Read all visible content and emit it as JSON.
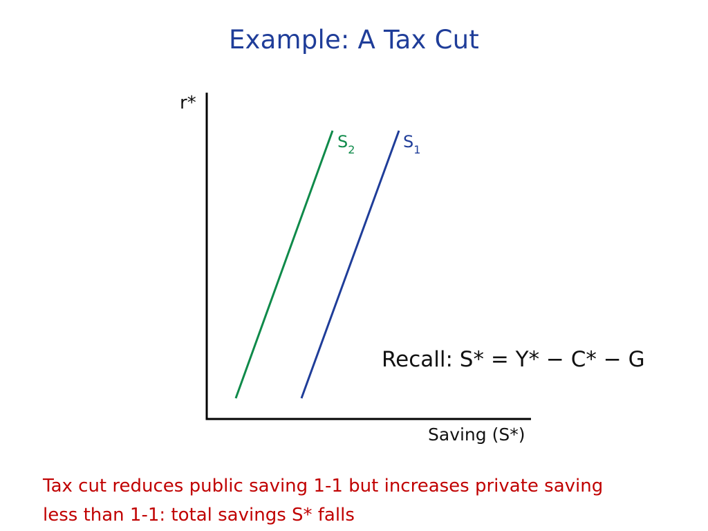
{
  "title": "Example: A Tax Cut",
  "diagram": {
    "y_axis_label": "r*",
    "x_axis_label": "Saving (S*)",
    "curves": [
      {
        "base": "S",
        "subscript": "2",
        "color": "#0f8a4a"
      },
      {
        "base": "S",
        "subscript": "1",
        "color": "#1f3d99"
      }
    ]
  },
  "recall_text": "Recall: S* = Y* − C* − G",
  "caption": {
    "line1": "Tax cut reduces public saving 1-1 but increases private saving",
    "line2": "less than 1-1: total savings S* falls"
  },
  "colors": {
    "title": "#1f3d99",
    "axis": "#000000",
    "caption": "#c00000"
  }
}
